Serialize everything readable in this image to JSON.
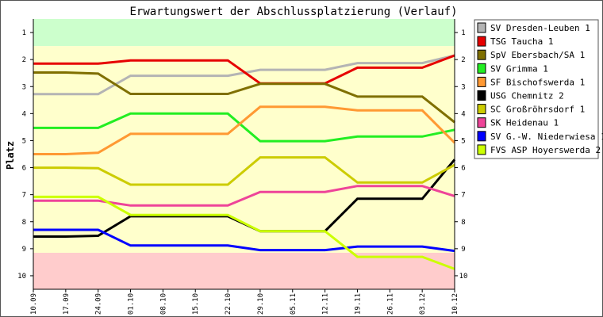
{
  "chart_data": {
    "type": "line",
    "title": "Erwartungswert der Abschlussplatzierung (Verlauf)",
    "ylabel": "Platz",
    "xlabel": "",
    "ylim": [
      10.5,
      0.5
    ],
    "y_inverted": true,
    "y_ticks": [
      1,
      2,
      3,
      4,
      5,
      6,
      7,
      8,
      9,
      10
    ],
    "x": [
      "10.09",
      "17.09",
      "24.09",
      "01.10",
      "08.10",
      "15.10",
      "22.10",
      "29.10",
      "05.11",
      "12.11",
      "19.11",
      "26.11",
      "03.12",
      "10.12"
    ],
    "bands": [
      {
        "from": 0.5,
        "to": 1.5,
        "color": "#ccffcc"
      },
      {
        "from": 1.5,
        "to": 9.15,
        "color": "#ffffcc"
      },
      {
        "from": 9.15,
        "to": 10.5,
        "color": "#ffcccc"
      }
    ],
    "legend_position": "right",
    "series": [
      {
        "name": "SV Dresden-Leuben 1",
        "color": "#b4b4b4",
        "values": [
          3.28,
          3.28,
          3.28,
          2.6,
          2.6,
          2.6,
          2.6,
          2.38,
          2.38,
          2.38,
          2.13,
          2.13,
          2.13,
          1.85
        ]
      },
      {
        "name": "TSG Taucha 1",
        "color": "#e60000",
        "values": [
          2.15,
          2.15,
          2.15,
          2.03,
          2.03,
          2.03,
          2.03,
          2.88,
          2.88,
          2.88,
          2.3,
          2.3,
          2.3,
          1.85
        ]
      },
      {
        "name": "SpV Ebersbach/SA 1",
        "color": "#7f6f00",
        "values": [
          2.48,
          2.48,
          2.52,
          3.27,
          3.27,
          3.27,
          3.27,
          2.9,
          2.9,
          2.9,
          3.37,
          3.37,
          3.37,
          4.32
        ]
      },
      {
        "name": "SV Grimma 1",
        "color": "#22ee22",
        "values": [
          4.53,
          4.53,
          4.53,
          4.0,
          4.0,
          4.0,
          4.0,
          5.02,
          5.02,
          5.02,
          4.85,
          4.85,
          4.85,
          4.6
        ]
      },
      {
        "name": "SF Bischofswerda 1",
        "color": "#ff9933",
        "values": [
          5.5,
          5.5,
          5.45,
          4.75,
          4.75,
          4.75,
          4.75,
          3.75,
          3.75,
          3.75,
          3.88,
          3.88,
          3.88,
          5.08
        ]
      },
      {
        "name": "USG Chemnitz 2",
        "color": "#000000",
        "values": [
          8.55,
          8.55,
          8.52,
          7.8,
          7.8,
          7.8,
          7.8,
          8.35,
          8.35,
          8.35,
          7.15,
          7.15,
          7.15,
          5.7
        ]
      },
      {
        "name": "SC Großröhrsdorf 1",
        "color": "#cccc00",
        "values": [
          6.0,
          6.0,
          6.02,
          6.63,
          6.63,
          6.63,
          6.63,
          5.62,
          5.62,
          5.62,
          6.55,
          6.55,
          6.55,
          5.9
        ]
      },
      {
        "name": "SK Heidenau 1",
        "color": "#ee4499",
        "values": [
          7.22,
          7.22,
          7.22,
          7.4,
          7.4,
          7.4,
          7.4,
          6.9,
          6.9,
          6.9,
          6.68,
          6.68,
          6.68,
          7.05
        ]
      },
      {
        "name": "SV G.-W. Niederwiesa 1",
        "color": "#0000ff",
        "values": [
          8.3,
          8.3,
          8.3,
          8.88,
          8.88,
          8.88,
          8.88,
          9.05,
          9.05,
          9.05,
          8.92,
          8.92,
          8.92,
          9.08
        ]
      },
      {
        "name": "FVS ASP Hoyerswerda 2",
        "color": "#ccff00",
        "values": [
          7.08,
          7.08,
          7.08,
          7.75,
          7.75,
          7.75,
          7.75,
          8.35,
          8.35,
          8.35,
          9.3,
          9.3,
          9.3,
          9.75
        ]
      }
    ]
  }
}
